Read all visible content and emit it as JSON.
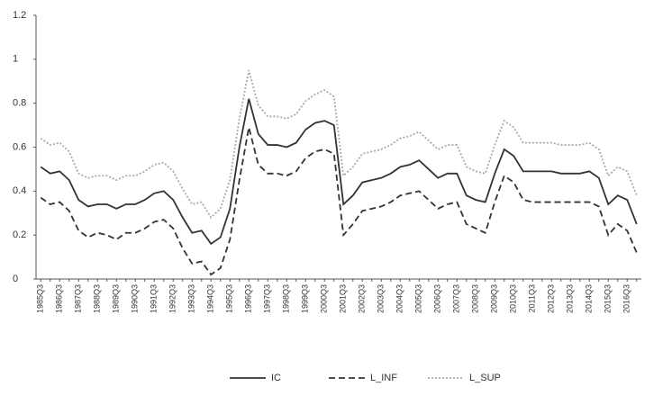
{
  "chart_data": {
    "type": "line",
    "categories": [
      "1985Q3",
      null,
      "1986Q3",
      null,
      "1987Q3",
      null,
      "1988Q3",
      null,
      "1989Q3",
      null,
      "1990Q3",
      null,
      "1991Q3",
      null,
      "1992Q3",
      null,
      "1993Q3",
      null,
      "1994Q3",
      null,
      "1995Q3",
      null,
      "1996Q3",
      null,
      "1997Q3",
      null,
      "1998Q3",
      null,
      "1999Q3",
      null,
      "2000Q3",
      null,
      "2001Q3",
      null,
      "2002Q3",
      null,
      "2003Q3",
      null,
      "2004Q3",
      null,
      "2005Q3",
      null,
      "2006Q3",
      null,
      "2007Q3",
      null,
      "2008Q3",
      null,
      "2009Q3",
      null,
      "2010Q3",
      null,
      "2011Q3",
      null,
      "2012Q3",
      null,
      "2013Q3",
      null,
      "2014Q3",
      null,
      "2015Q3",
      null,
      "2016Q3",
      null
    ],
    "series": [
      {
        "name": "IC",
        "color": "#333333",
        "dash": "solid",
        "values": [
          0.51,
          0.48,
          0.49,
          0.45,
          0.36,
          0.33,
          0.34,
          0.34,
          0.32,
          0.34,
          0.34,
          0.36,
          0.39,
          0.4,
          0.36,
          0.28,
          0.21,
          0.22,
          0.16,
          0.19,
          0.32,
          0.6,
          0.82,
          0.66,
          0.61,
          0.61,
          0.6,
          0.62,
          0.68,
          0.71,
          0.72,
          0.7,
          0.34,
          0.38,
          0.44,
          0.45,
          0.46,
          0.48,
          0.51,
          0.52,
          0.54,
          0.5,
          0.46,
          0.48,
          0.48,
          0.38,
          0.36,
          0.35,
          0.48,
          0.59,
          0.56,
          0.49,
          0.49,
          0.49,
          0.49,
          0.48,
          0.48,
          0.48,
          0.49,
          0.46,
          0.34,
          0.38,
          0.36,
          0.25
        ]
      },
      {
        "name": "L_INF",
        "color": "#333333",
        "dash": "dashed",
        "values": [
          0.37,
          0.34,
          0.35,
          0.31,
          0.22,
          0.19,
          0.21,
          0.2,
          0.18,
          0.21,
          0.21,
          0.23,
          0.26,
          0.27,
          0.23,
          0.14,
          0.07,
          0.08,
          0.02,
          0.05,
          0.18,
          0.45,
          0.69,
          0.52,
          0.48,
          0.48,
          0.47,
          0.49,
          0.55,
          0.58,
          0.59,
          0.57,
          0.2,
          0.25,
          0.31,
          0.32,
          0.33,
          0.35,
          0.38,
          0.39,
          0.4,
          0.36,
          0.32,
          0.34,
          0.35,
          0.25,
          0.23,
          0.21,
          0.35,
          0.47,
          0.44,
          0.36,
          0.35,
          0.35,
          0.35,
          0.35,
          0.35,
          0.35,
          0.35,
          0.33,
          0.2,
          0.25,
          0.22,
          0.12
        ]
      },
      {
        "name": "L_SUP",
        "color": "#aaaaaa",
        "dash": "dotted",
        "values": [
          0.64,
          0.61,
          0.62,
          0.58,
          0.48,
          0.46,
          0.47,
          0.47,
          0.45,
          0.47,
          0.47,
          0.49,
          0.52,
          0.53,
          0.49,
          0.41,
          0.34,
          0.35,
          0.28,
          0.32,
          0.45,
          0.73,
          0.95,
          0.79,
          0.74,
          0.74,
          0.73,
          0.75,
          0.81,
          0.84,
          0.86,
          0.83,
          0.47,
          0.51,
          0.57,
          0.58,
          0.59,
          0.61,
          0.64,
          0.65,
          0.67,
          0.63,
          0.59,
          0.61,
          0.61,
          0.51,
          0.49,
          0.48,
          0.61,
          0.72,
          0.69,
          0.62,
          0.62,
          0.62,
          0.62,
          0.61,
          0.61,
          0.61,
          0.62,
          0.59,
          0.47,
          0.51,
          0.49,
          0.38
        ]
      }
    ],
    "ylim": [
      0,
      1.2
    ],
    "yticks": [
      0,
      0.2,
      0.4,
      0.6,
      0.8,
      1,
      1.2
    ],
    "grid": false,
    "legend": "bottom"
  }
}
